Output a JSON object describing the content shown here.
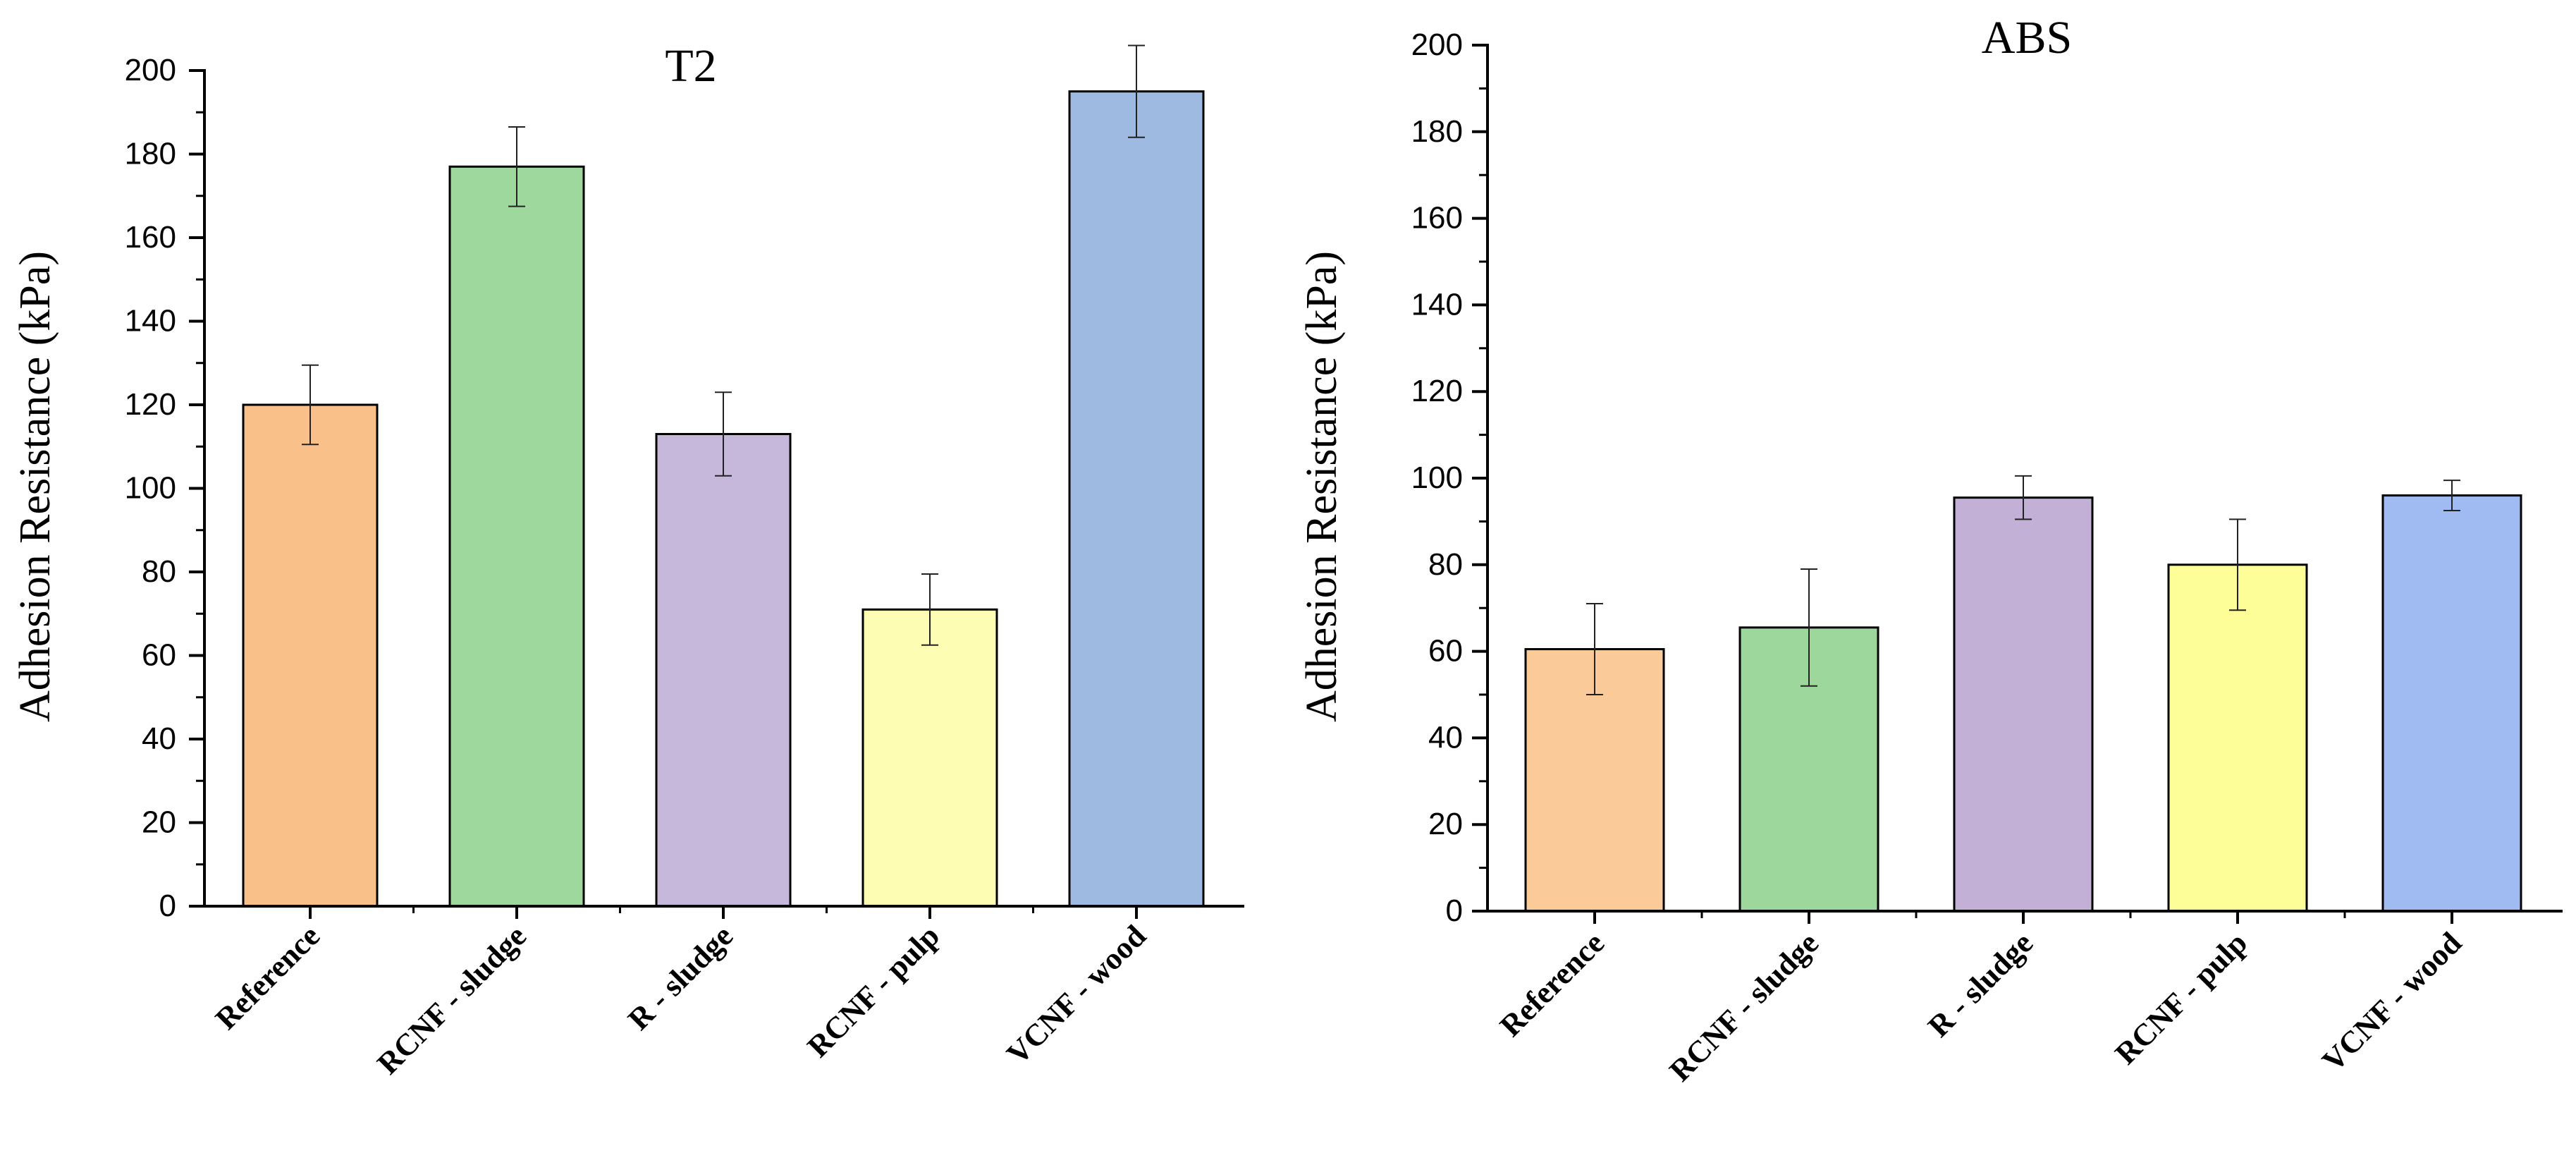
{
  "chart_data": [
    {
      "type": "bar",
      "title": "T2",
      "xlabel": "",
      "ylabel": "Adhesion Resistance (kPa)",
      "ylim": [
        0,
        200
      ],
      "yticks": [
        0,
        20,
        40,
        60,
        80,
        100,
        120,
        140,
        160,
        180,
        200
      ],
      "categories": [
        "Reference",
        "RCNF - sludge",
        "R - sludge",
        "RCNF - pulp",
        "VCNF - wood"
      ],
      "values": [
        120,
        177,
        113,
        71,
        195
      ],
      "errors": [
        9.5,
        9.5,
        10,
        8.5,
        11
      ],
      "colors": [
        "#f9c08a",
        "#9fd89d",
        "#c6b8da",
        "#fefdb4",
        "#9fbae0"
      ]
    },
    {
      "type": "bar",
      "title": "ABS",
      "xlabel": "",
      "ylabel": "Adhesion Resistance (kPa)",
      "ylim": [
        0,
        200
      ],
      "yticks": [
        0,
        20,
        40,
        60,
        80,
        100,
        120,
        140,
        160,
        180,
        200
      ],
      "categories": [
        "Reference",
        "RCNF - sludge",
        "R - sludge",
        "RCNF - pulp",
        "VCNF - wood"
      ],
      "values": [
        60.5,
        65.5,
        95.5,
        80,
        96
      ],
      "errors": [
        10.5,
        13.5,
        5,
        10.5,
        3.5
      ],
      "colors": [
        "#facb98",
        "#9dd79b",
        "#c3b0d7",
        "#fefe98",
        "#9fbbf2"
      ]
    }
  ]
}
